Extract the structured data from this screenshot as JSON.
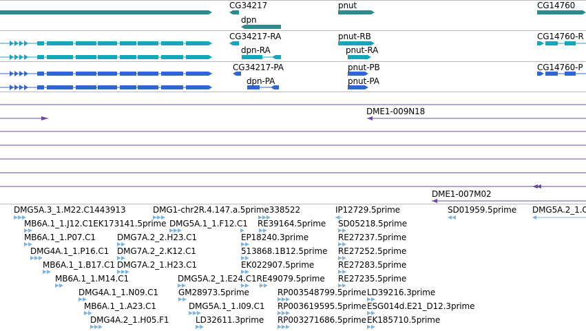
{
  "colors": {
    "gene": "#2e8b8b",
    "transcript_ra": "#1ba3b8",
    "transcript_pa": "#3366cc",
    "bac": "#6a4aa0",
    "est": "#7fb2dc",
    "divider": "#bbbbbb"
  },
  "tracks": {
    "genes": {
      "labels": [
        "CG34217",
        "dpn",
        "pnut",
        "CG14760"
      ]
    },
    "transcripts_r": {
      "labels": [
        "CG34217-RA",
        "dpn-RA",
        "pnut-RB",
        "pnut-RA",
        "CG14760-R"
      ]
    },
    "transcripts_p": {
      "labels": [
        "CG34217-PA",
        "dpn-PA",
        "pnut-PB",
        "pnut-PA",
        "CG14760-P"
      ]
    },
    "bac": {
      "labels": [
        "DME1-009N18",
        "DME1-007M02"
      ]
    },
    "est": {
      "labels": [
        "DMG5A.3_1.M22.C1443913",
        "DMG1-chr2R.4.147.a.5prime338522",
        "IP12729.5prime",
        "SD01959.5prime",
        "DMG5A.2_1.C",
        "MB6A.1_1.J12.C1EK173141.5prime",
        "DMG5A.1_1.F12.C1",
        "RE39164.5prime",
        "SD05218.5prime",
        "MB6A.1_1.P07.C1",
        "DMG7A.2_2.H23.C1",
        "EP18240.3prime",
        "RE27237.5prime",
        "DMG4A.1_1.P16.C1",
        "DMG7A.2_2.K12.C1",
        "513868.1B12.5prime",
        "RE27252.5prime",
        "MB6A.1_1.B17.C1",
        "DMG7A.2_1.H23.C1",
        "EK022907.5prime",
        "RE27283.5prime",
        "MB6A.1_1.M14.C1",
        "DMG5A.2_1.E24.C1RE49079.5prime",
        "RE27235.5prime",
        "DMG4A.1_1.N09.C1",
        "GM28973.5prime",
        "RP003548799.5prime",
        "LD39216.3prime",
        "MB6A.1_1.A23.C1",
        "DMG5A.1_1.I09.C1",
        "RP003619595.5prime",
        "ESG014d.E21_D12.3prime",
        "DMG4A.2_1.H05.F1",
        "LD32611.3prime",
        "RP003271686.5prime",
        "EK185710.5prime"
      ]
    }
  }
}
